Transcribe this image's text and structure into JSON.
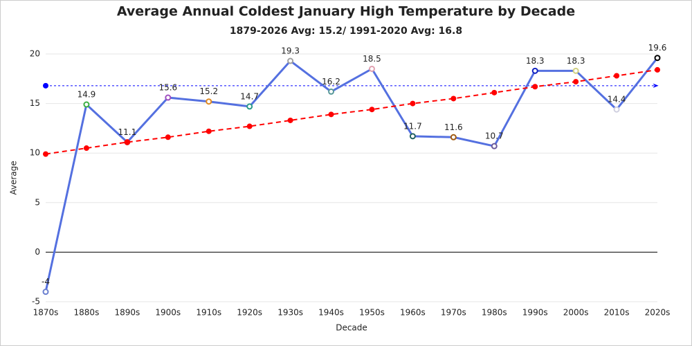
{
  "chart_data": {
    "type": "line",
    "title": "Average Annual Coldest January High Temperature by Decade",
    "subtitle": "1879-2026 Avg: 15.2/ 1991-2020 Avg: 16.8",
    "x_label": "Decade",
    "y_label": "Average",
    "categories": [
      "1870s",
      "1880s",
      "1890s",
      "1900s",
      "1910s",
      "1920s",
      "1930s",
      "1940s",
      "1950s",
      "1960s",
      "1970s",
      "1980s",
      "1990s",
      "2000s",
      "2010s",
      "2020s"
    ],
    "series": [
      {
        "color": "#5470e0",
        "values": [
          -4,
          14.9,
          11.1,
          15.6,
          15.2,
          14.7,
          19.3,
          16.2,
          18.5,
          11.7,
          11.6,
          10.7,
          18.3,
          18.3,
          14.4,
          19.6
        ],
        "marker_colors": [
          "#6a7fd0",
          "#3cb043",
          "#e03030",
          "#a050c0",
          "#e08a20",
          "#2a9a8a",
          "#a0a0a0",
          "#5a9a9a",
          "#e0a0b0",
          "#206060",
          "#a05a10",
          "#6a5a9a",
          "#1020c0",
          "#d0d080",
          "#d0d0e0",
          "#000000"
        ],
        "data_labels": true
      },
      {
        "color": "#ff0000",
        "dashed": true,
        "values": [
          9.9,
          10.5,
          11.1,
          11.6,
          12.2,
          12.7,
          13.3,
          13.9,
          14.4,
          15.0,
          15.5,
          16.1,
          16.7,
          17.2,
          17.8,
          18.4
        ]
      }
    ],
    "reference_line": {
      "value": 16.8,
      "color": "#0000ff"
    },
    "ylim": [
      -5,
      20
    ],
    "yticks": [
      -5,
      0,
      5,
      10,
      15,
      20
    ],
    "grid": true
  }
}
